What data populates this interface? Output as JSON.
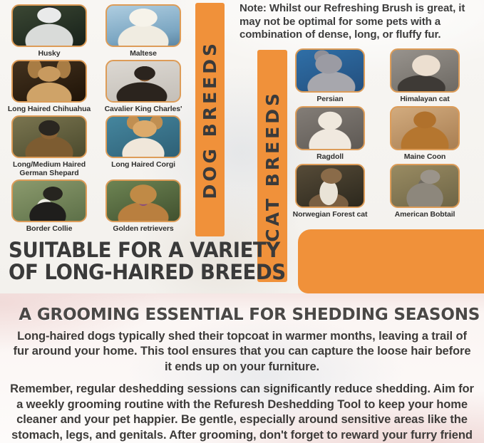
{
  "colors": {
    "accent_orange": "#F0913A",
    "banner_text": "#3A3A3A",
    "heading_text": "#3A3A3A",
    "body_text": "#3D3B39",
    "photo_border": "#DD9C58"
  },
  "note": {
    "text": "Note: Whilst our Refreshing Brush is great, it may not be optimal for some pets with a combination of dense, long, or fluffy fur."
  },
  "banners": {
    "dog": "DOG BREEDS",
    "cat": "CAT BREEDS"
  },
  "dog_breeds": [
    {
      "label": "Husky"
    },
    {
      "label": "Maltese"
    },
    {
      "label": "Long Haired Chihuahua"
    },
    {
      "label": "Cavalier King Charles'"
    },
    {
      "label": "Long/Medium Haired German Shepard"
    },
    {
      "label": "Long Haired Corgi"
    },
    {
      "label": "Border Collie"
    },
    {
      "label": "Golden retrievers"
    }
  ],
  "cat_breeds": [
    {
      "label": "Persian"
    },
    {
      "label": "Himalayan cat"
    },
    {
      "label": "Ragdoll"
    },
    {
      "label": "Maine Coon"
    },
    {
      "label": "Norwegian Forest cat"
    },
    {
      "label": "American Bobtail"
    }
  ],
  "suitable_heading": {
    "line1": "SUITABLE FOR A VARIETY",
    "line2": "OF LONG-HAIRED BREEDS"
  },
  "bottom": {
    "heading": "A GROOMING ESSENTIAL FOR SHEDDING SEASONS",
    "paragraph1": "Long-haired dogs typically shed their topcoat in warmer months, leaving a trail of fur around your home. This tool ensures that you can capture the loose hair before it ends up on your furniture.",
    "paragraph2": "Remember, regular deshedding sessions can significantly reduce shedding. Aim for a weekly grooming routine with the Refuresh Deshedding Tool to keep your home cleaner and your pet happier. Be gentle, especially around sensitive areas like the stomach, legs, and genitals. After grooming, don't forget to reward your furry friend with some well-deserved snuggles."
  }
}
